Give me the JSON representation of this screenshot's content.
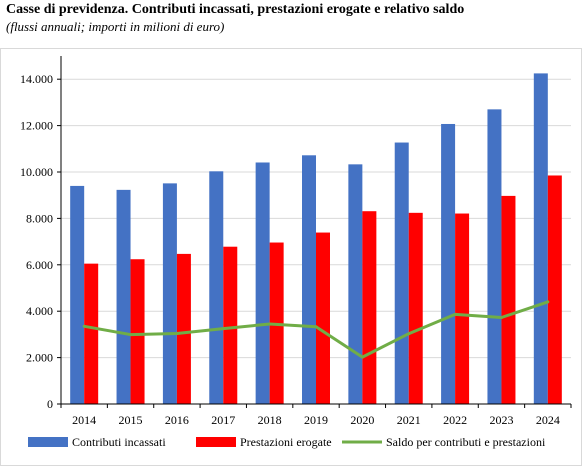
{
  "title": "Casse di previdenza. Contributi incassati, prestazioni erogate e relativo saldo",
  "subtitle": "(flussi annuali; importi in milioni di euro)",
  "colors": {
    "contributi": "#4472C4",
    "prestazioni": "#FF0000",
    "saldo": "#70AD47",
    "grid": "#d9d9d9",
    "axis": "#000000"
  },
  "chart_data": {
    "type": "bar",
    "categories": [
      "2014",
      "2015",
      "2016",
      "2017",
      "2018",
      "2019",
      "2020",
      "2021",
      "2022",
      "2023",
      "2024"
    ],
    "series": [
      {
        "name": "Contributi incassati",
        "type": "bar",
        "values": [
          9400,
          9230,
          9510,
          10030,
          10410,
          10720,
          10330,
          11270,
          12070,
          12700,
          14250
        ]
      },
      {
        "name": "Prestazioni erogate",
        "type": "bar",
        "values": [
          6050,
          6240,
          6470,
          6780,
          6960,
          7390,
          8310,
          8240,
          8210,
          8970,
          9850
        ]
      },
      {
        "name": "Saldo per contributi e prestazioni",
        "type": "line",
        "values": [
          3350,
          2990,
          3040,
          3250,
          3450,
          3330,
          2020,
          3030,
          3860,
          3730,
          4400
        ]
      }
    ],
    "yticks": [
      "0",
      "2.000",
      "4.000",
      "6.000",
      "8.000",
      "10.000",
      "12.000",
      "14.000"
    ],
    "ylim": [
      0,
      15000
    ],
    "ytick_step": 2000,
    "grid": true,
    "legend_position": "bottom"
  }
}
